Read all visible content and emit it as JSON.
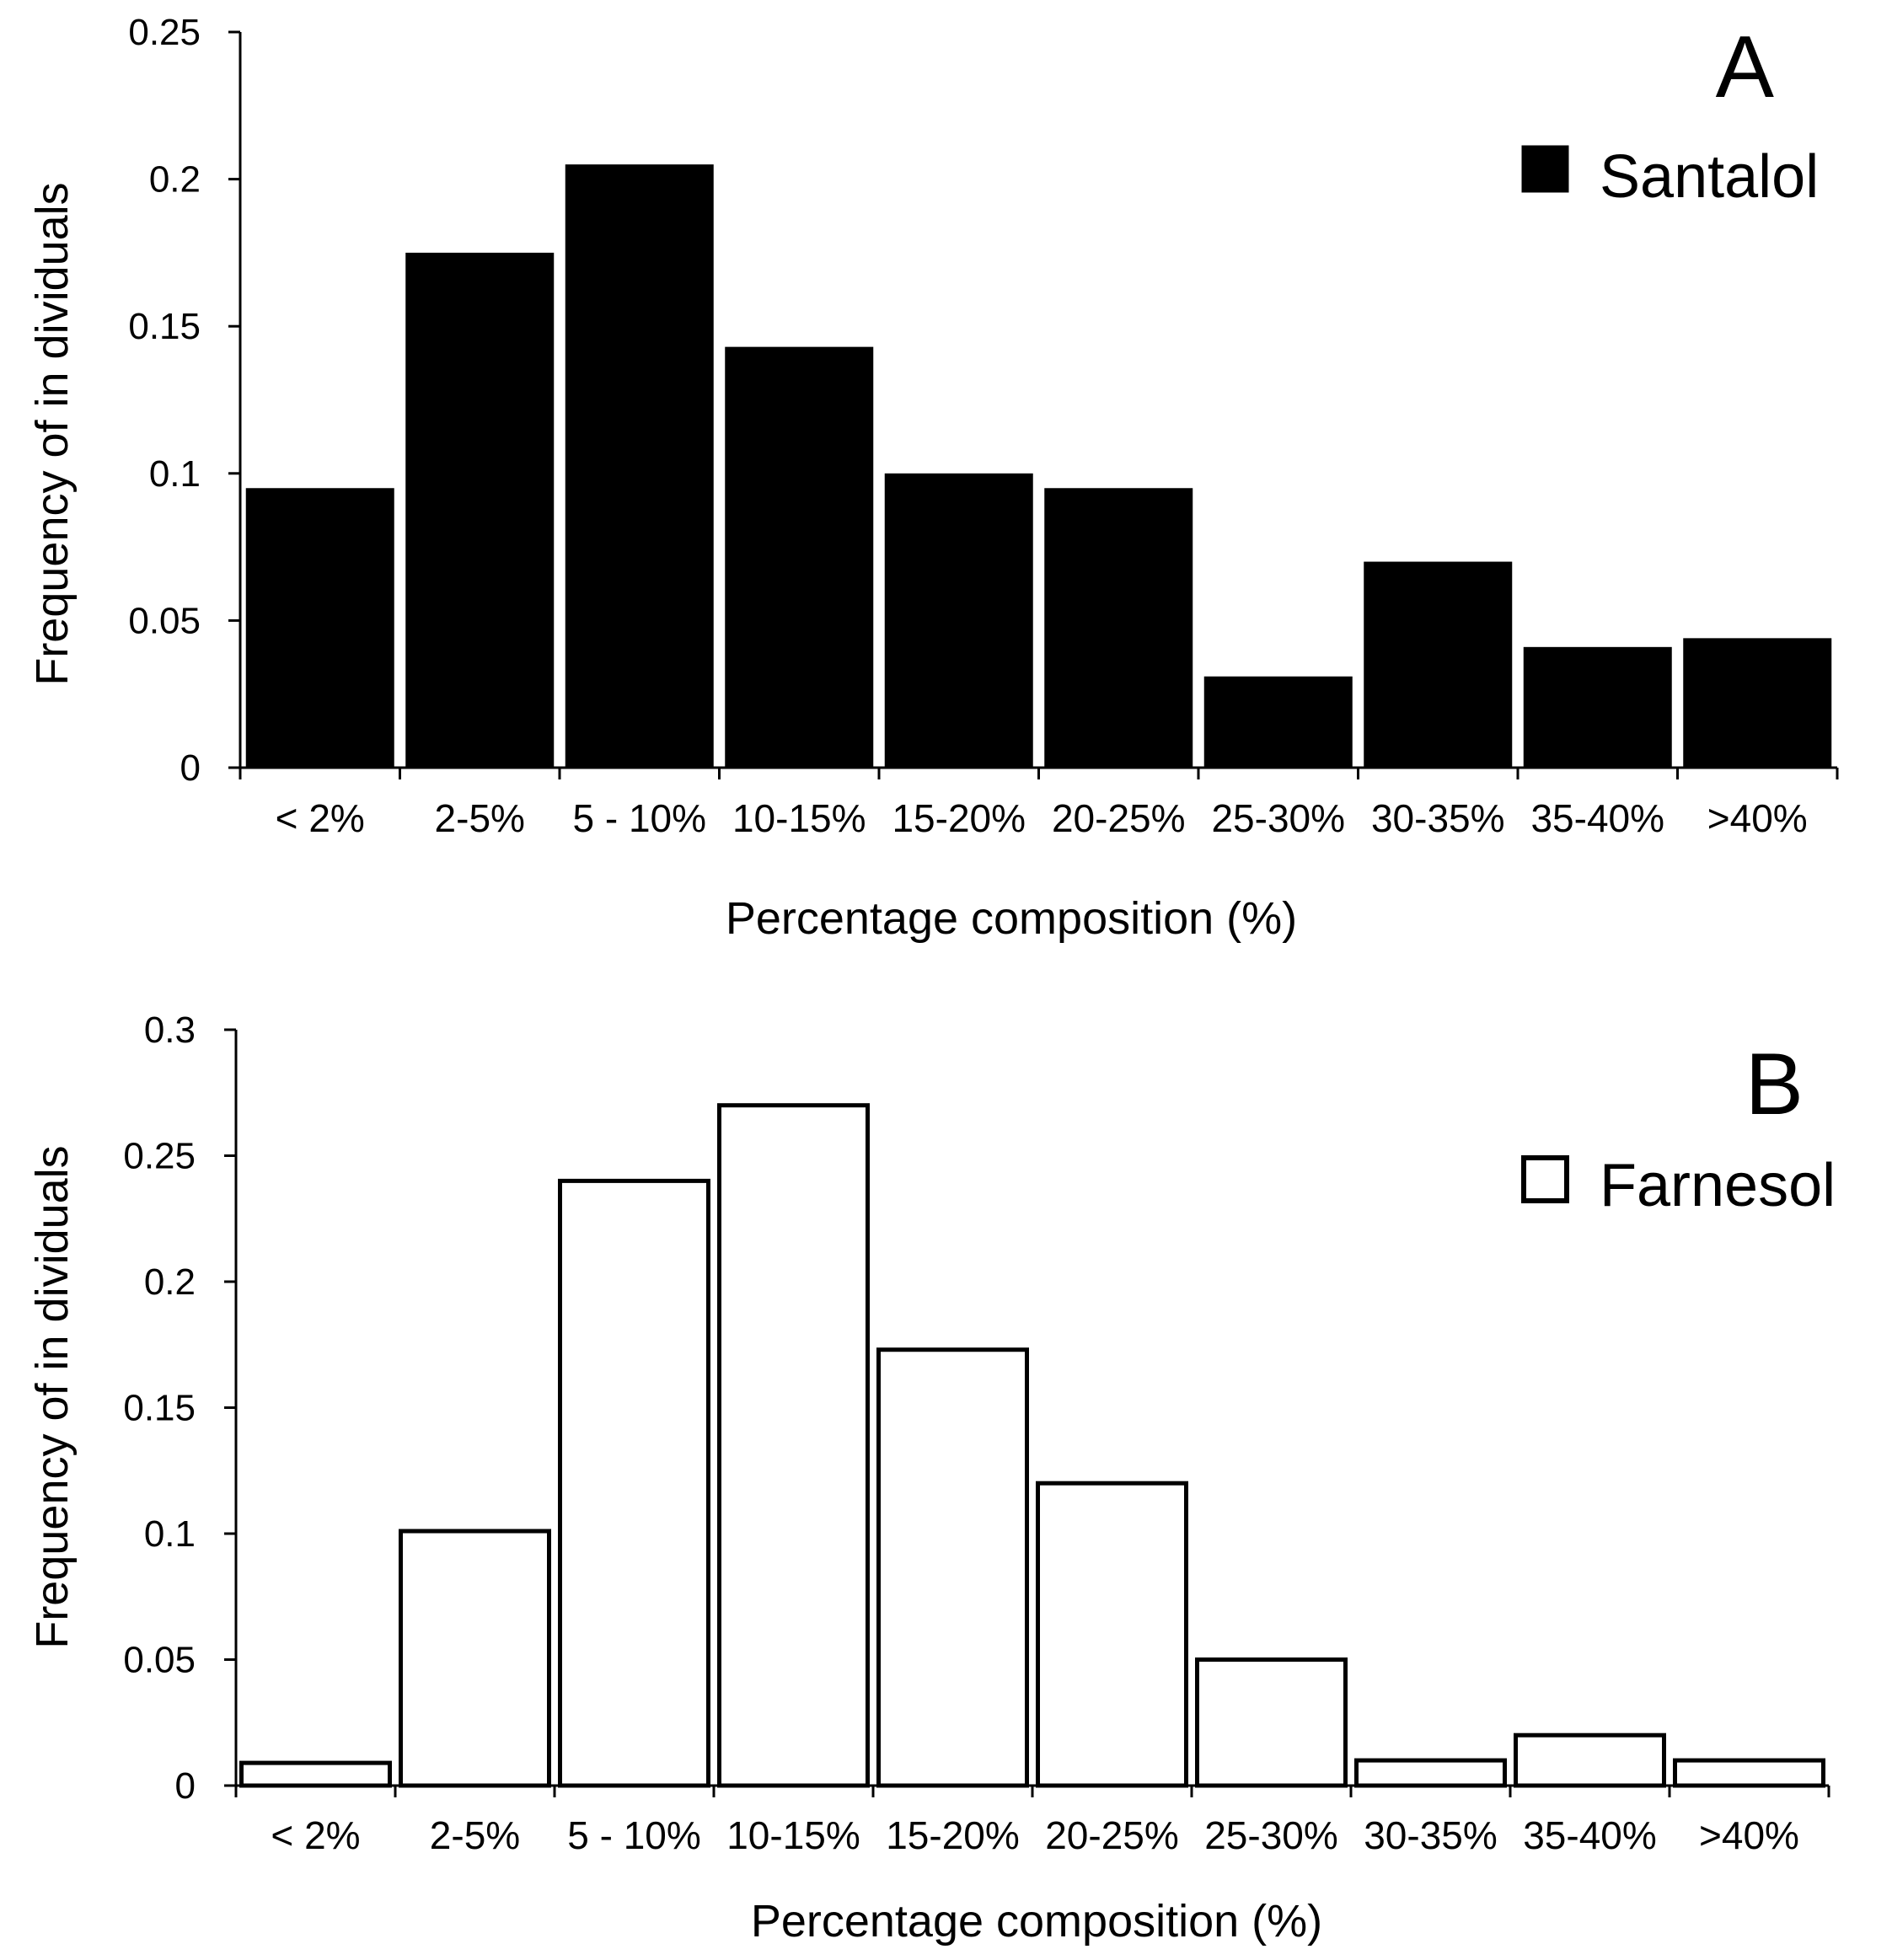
{
  "chart_data": [
    {
      "type": "bar",
      "panel_label": "A",
      "categories": [
        "< 2%",
        "2-5%",
        "5 - 10%",
        "10-15%",
        "15-20%",
        "20-25%",
        "25-30%",
        "30-35%",
        "35-40%",
        ">40%"
      ],
      "series": [
        {
          "name": "Santalol",
          "color": "#000000",
          "fill": "solid",
          "values": [
            0.095,
            0.175,
            0.205,
            0.143,
            0.1,
            0.095,
            0.031,
            0.07,
            0.041,
            0.044
          ]
        }
      ],
      "xlabel": "Percentage composition (%)",
      "ylabel": "Frequency of in dividuals",
      "ylim": [
        0,
        0.25
      ],
      "yticks": [
        "0",
        "0.05",
        "0.1",
        "0.15",
        "0.2",
        "0.25"
      ],
      "grid": false,
      "legend_position": "top-right"
    },
    {
      "type": "bar",
      "panel_label": "B",
      "categories": [
        "< 2%",
        "2-5%",
        "5 - 10%",
        "10-15%",
        "15-20%",
        "20-25%",
        "25-30%",
        "30-35%",
        "35-40%",
        ">40%"
      ],
      "series": [
        {
          "name": "Farnesol",
          "color": "#000000",
          "fill": "hollow",
          "values": [
            0.009,
            0.101,
            0.24,
            0.27,
            0.173,
            0.12,
            0.05,
            0.01,
            0.02,
            0.01
          ]
        }
      ],
      "xlabel": "Percentage composition (%)",
      "ylabel": "Frequency of in dividuals",
      "ylim": [
        0,
        0.3
      ],
      "yticks": [
        "0",
        "0.05",
        "0.1",
        "0.15",
        "0.2",
        "0.25",
        "0.3"
      ],
      "grid": false,
      "legend_position": "top-right"
    }
  ]
}
